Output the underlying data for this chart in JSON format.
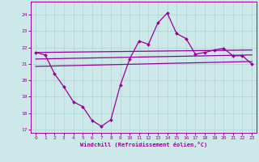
{
  "xlabel": "Windchill (Refroidissement éolien,°C)",
  "xlim": [
    -0.5,
    23.5
  ],
  "ylim": [
    16.8,
    24.8
  ],
  "yticks": [
    17,
    18,
    19,
    20,
    21,
    22,
    23,
    24
  ],
  "xticks": [
    0,
    1,
    2,
    3,
    4,
    5,
    6,
    7,
    8,
    9,
    10,
    11,
    12,
    13,
    14,
    15,
    16,
    17,
    18,
    19,
    20,
    21,
    22,
    23
  ],
  "bg_color": "#cce8e8",
  "grid_color": "#aad4d4",
  "line_color": "#990099",
  "curve1_x": [
    0,
    1,
    2,
    3,
    4,
    5,
    6,
    7,
    8,
    9,
    10,
    11,
    12,
    13,
    14,
    15,
    16,
    17,
    18,
    19,
    20,
    21,
    22,
    23
  ],
  "curve1_y": [
    21.7,
    21.55,
    20.4,
    19.6,
    18.7,
    18.4,
    17.55,
    17.2,
    17.6,
    19.7,
    21.3,
    22.4,
    22.2,
    23.5,
    24.1,
    22.85,
    22.55,
    21.6,
    21.7,
    21.85,
    21.95,
    21.5,
    21.5,
    21.0
  ],
  "curve2_x": [
    0,
    23
  ],
  "curve2_y": [
    21.7,
    21.85
  ],
  "curve3_x": [
    0,
    23
  ],
  "curve3_y": [
    21.3,
    21.55
  ],
  "curve4_x": [
    0,
    23
  ],
  "curve4_y": [
    20.85,
    21.15
  ]
}
